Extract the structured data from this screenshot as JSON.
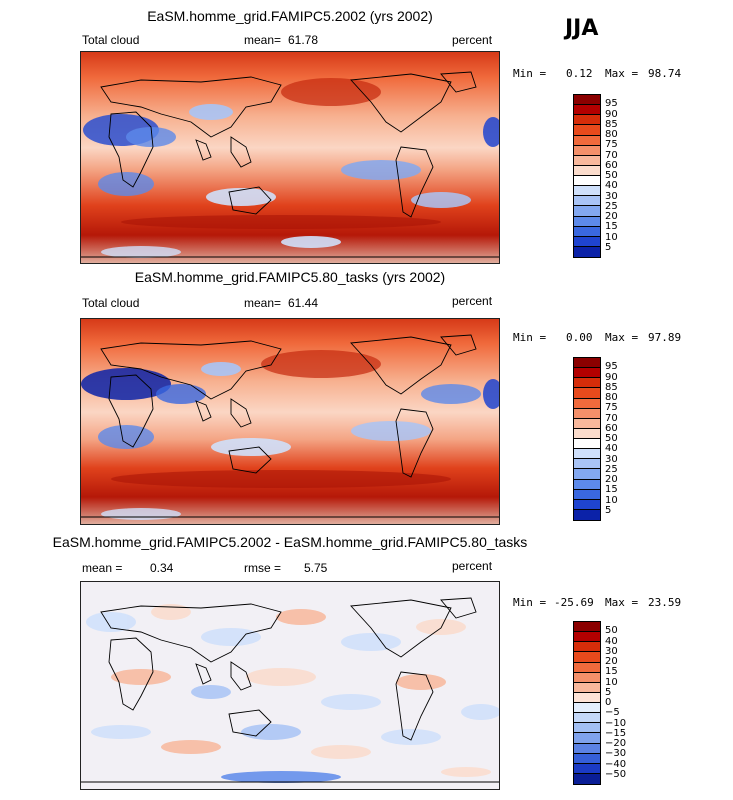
{
  "season": "JJA",
  "panels": [
    {
      "title": "EaSM.homme_grid.FAMIPC5.2002 (yrs 2002)",
      "left_label": "Total cloud",
      "stat_label": "mean=",
      "stat_value": "61.78",
      "stat2_label": "",
      "stat2_value": "",
      "units": "percent",
      "min_label": "Min =",
      "min_value": "0.12",
      "max_label": "Max =",
      "max_value": "98.74",
      "colorbar": {
        "labels": [
          "95",
          "90",
          "85",
          "80",
          "75",
          "70",
          "60",
          "50",
          "40",
          "30",
          "25",
          "20",
          "15",
          "10",
          "5"
        ],
        "colors": [
          "#8b0000",
          "#b30000",
          "#d62d0a",
          "#e84a1c",
          "#f06a3c",
          "#f4906a",
          "#f8b89c",
          "#fbdccc",
          "#ffffff",
          "#cfe0fb",
          "#a9c4f6",
          "#83a8f0",
          "#5d8aea",
          "#3a68e0",
          "#1f44d0",
          "#0b22a8"
        ]
      }
    },
    {
      "title": "EaSM.homme_grid.FAMIPC5.80_tasks (yrs 2002)",
      "left_label": "Total cloud",
      "stat_label": "mean=",
      "stat_value": "61.44",
      "stat2_label": "",
      "stat2_value": "",
      "units": "percent",
      "min_label": "Min =",
      "min_value": "0.00",
      "max_label": "Max =",
      "max_value": "97.89",
      "colorbar": {
        "labels": [
          "95",
          "90",
          "85",
          "80",
          "75",
          "70",
          "60",
          "50",
          "40",
          "30",
          "25",
          "20",
          "15",
          "10",
          "5"
        ],
        "colors": [
          "#8b0000",
          "#b30000",
          "#d62d0a",
          "#e84a1c",
          "#f06a3c",
          "#f4906a",
          "#f8b89c",
          "#fbdccc",
          "#ffffff",
          "#cfe0fb",
          "#a9c4f6",
          "#83a8f0",
          "#5d8aea",
          "#3a68e0",
          "#1f44d0",
          "#0b22a8"
        ]
      }
    },
    {
      "title": "EaSM.homme_grid.FAMIPC5.2002 - EaSM.homme_grid.FAMIPC5.80_tasks",
      "left_label": "",
      "stat_label": "mean =",
      "stat_value": "0.34",
      "stat2_label": "rmse =",
      "stat2_value": "5.75",
      "units": "percent",
      "min_label": "Min =",
      "min_value": "-25.69",
      "max_label": "Max =",
      "max_value": "23.59",
      "colorbar": {
        "labels": [
          "50",
          "40",
          "30",
          "20",
          "15",
          "10",
          "5",
          "0",
          "−5",
          "−10",
          "−15",
          "−20",
          "−30",
          "−40",
          "−50"
        ],
        "colors": [
          "#8b0000",
          "#b30000",
          "#d62d0a",
          "#e84a1c",
          "#f06a3c",
          "#f4906a",
          "#f8b89c",
          "#fde3d6",
          "#e3eefc",
          "#c4d8f8",
          "#a2bff3",
          "#7fa2ec",
          "#5b82e4",
          "#355fd8",
          "#1b3bc4",
          "#0a1e96"
        ]
      }
    }
  ],
  "chart_data": [
    {
      "type": "heatmap",
      "title": "EaSM.homme_grid.FAMIPC5.2002 (yrs 2002)",
      "variable": "Total cloud",
      "units": "percent",
      "mean": 61.78,
      "min": 0.12,
      "max": 98.74,
      "contour_levels": [
        5,
        10,
        15,
        20,
        25,
        30,
        40,
        50,
        60,
        70,
        75,
        80,
        85,
        90,
        95
      ]
    },
    {
      "type": "heatmap",
      "title": "EaSM.homme_grid.FAMIPC5.80_tasks (yrs 2002)",
      "variable": "Total cloud",
      "units": "percent",
      "mean": 61.44,
      "min": 0.0,
      "max": 97.89,
      "contour_levels": [
        5,
        10,
        15,
        20,
        25,
        30,
        40,
        50,
        60,
        70,
        75,
        80,
        85,
        90,
        95
      ]
    },
    {
      "type": "heatmap",
      "title": "EaSM.homme_grid.FAMIPC5.2002 - EaSM.homme_grid.FAMIPC5.80_tasks",
      "units": "percent",
      "mean": 0.34,
      "rmse": 5.75,
      "min": -25.69,
      "max": 23.59,
      "contour_levels": [
        -50,
        -40,
        -30,
        -20,
        -15,
        -10,
        -5,
        0,
        5,
        10,
        15,
        20,
        30,
        40,
        50
      ]
    }
  ]
}
